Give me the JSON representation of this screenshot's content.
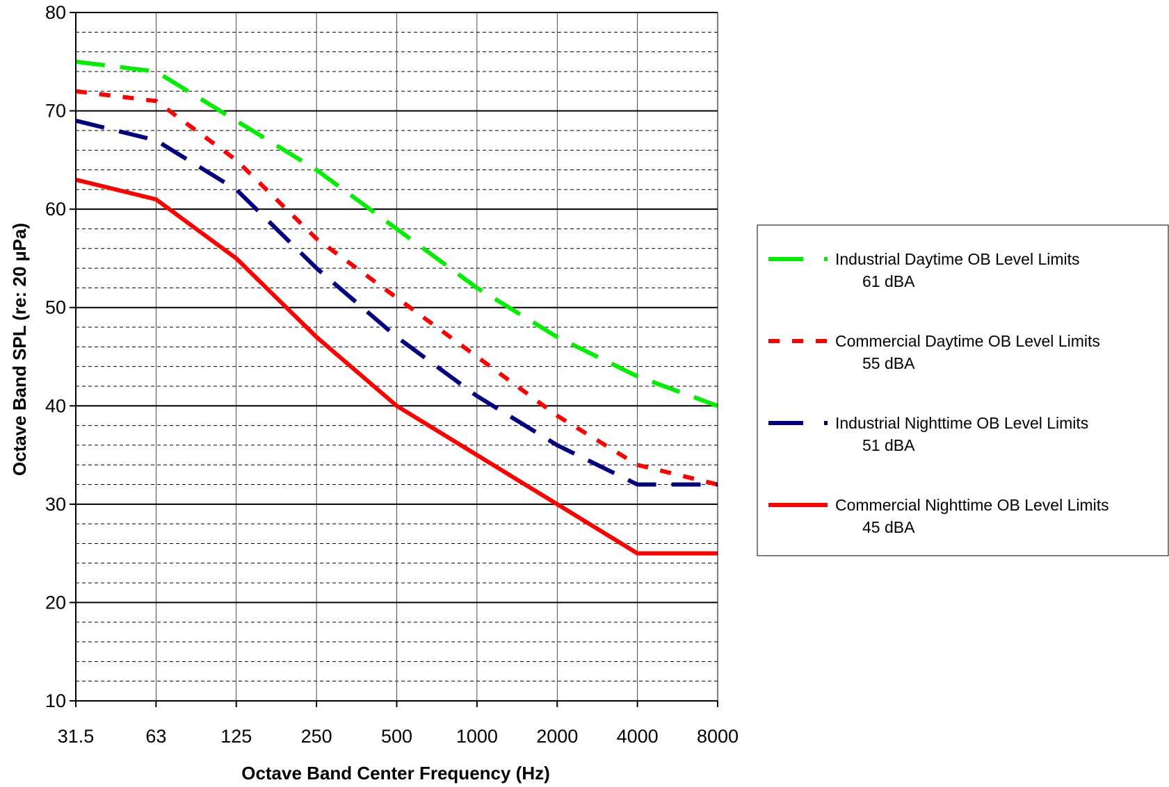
{
  "chart_data": {
    "type": "line",
    "xlabel": "Octave Band Center Frequency (Hz)",
    "ylabel": "Octave Band SPL (re: 20 µPa)",
    "categories": [
      "31.5",
      "63",
      "125",
      "250",
      "500",
      "1000",
      "2000",
      "4000",
      "8000"
    ],
    "ylim": [
      10,
      80
    ],
    "yticks": [
      "10",
      "20",
      "30",
      "40",
      "50",
      "60",
      "70",
      "80"
    ],
    "grid": "major solid every 10, minor dashed every 2",
    "legend_position": "right",
    "series": [
      {
        "name": "Industrial Daytime OB Level Limits",
        "sub": "61 dBA",
        "color": "#00ee00",
        "style": "long-dash",
        "values": [
          75,
          74,
          69,
          64,
          58,
          52,
          47,
          43,
          40
        ]
      },
      {
        "name": "Commercial Daytime OB Level Limits",
        "sub": "55 dBA",
        "color": "#ff0000",
        "style": "short-dash",
        "values": [
          72,
          71,
          65,
          57,
          51,
          45,
          39,
          34,
          32
        ]
      },
      {
        "name": "Industrial Nighttime OB Level Limits",
        "sub": "51 dBA",
        "color": "#000080",
        "style": "long-dash",
        "values": [
          69,
          67,
          62,
          54,
          47,
          41,
          36,
          32,
          32
        ]
      },
      {
        "name": "Commercial Nighttime OB Level Limits",
        "sub": "45 dBA",
        "color": "#ff0000",
        "style": "solid",
        "values": [
          63,
          61,
          55,
          47,
          40,
          35,
          30,
          25,
          25
        ]
      }
    ]
  }
}
